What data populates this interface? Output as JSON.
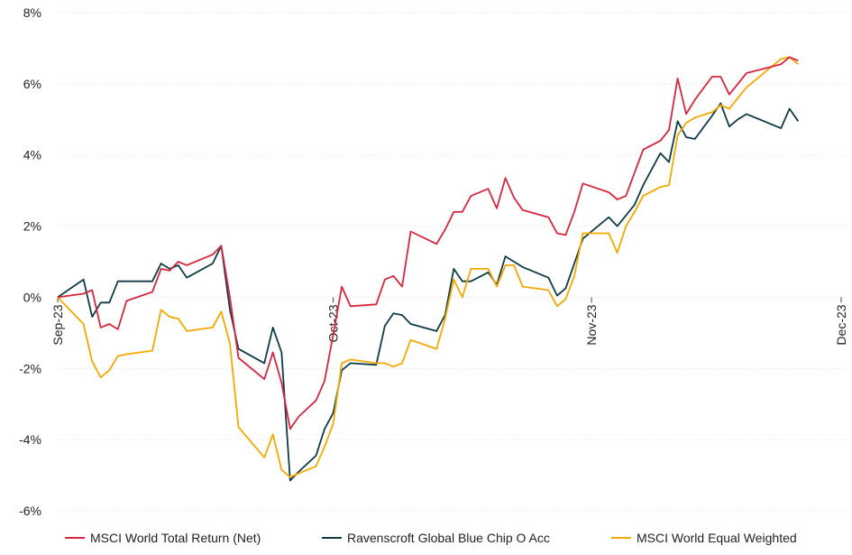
{
  "chart_data": {
    "type": "line",
    "title": "",
    "xlabel": "",
    "ylabel": "",
    "y_unit": "%",
    "ylim": [
      -6,
      8
    ],
    "y_ticks": [
      -6,
      -4,
      -2,
      0,
      2,
      4,
      6,
      8
    ],
    "y_tick_labels": [
      "-6%",
      "-4%",
      "-2%",
      "0%",
      "2%",
      "4%",
      "6%",
      "8%"
    ],
    "x_range": [
      "2023-09-29",
      "2023-12-29"
    ],
    "x_ticks": [
      {
        "date": "2023-09-29",
        "label": "Sep-23"
      },
      {
        "date": "2023-10-31",
        "label": "Oct-23"
      },
      {
        "date": "2023-11-30",
        "label": "Nov-23"
      },
      {
        "date": "2023-12-29",
        "label": "Dec-23"
      }
    ],
    "grid": "horizontal",
    "legend_position": "bottom",
    "series": [
      {
        "name": "MSCI World Total Return (Net)",
        "color": "#d7263d",
        "points": [
          [
            "2023-09-29",
            0.0
          ],
          [
            "2023-10-02",
            0.1
          ],
          [
            "2023-10-03",
            0.2
          ],
          [
            "2023-10-04",
            -0.85
          ],
          [
            "2023-10-05",
            -0.75
          ],
          [
            "2023-10-06",
            -0.9
          ],
          [
            "2023-10-07",
            -0.1
          ],
          [
            "2023-10-10",
            0.15
          ],
          [
            "2023-10-11",
            0.8
          ],
          [
            "2023-10-12",
            0.75
          ],
          [
            "2023-10-13",
            1.0
          ],
          [
            "2023-10-14",
            0.9
          ],
          [
            "2023-10-17",
            1.2
          ],
          [
            "2023-10-18",
            1.45
          ],
          [
            "2023-10-19",
            0.0
          ],
          [
            "2023-10-20",
            -1.7
          ],
          [
            "2023-10-23",
            -2.3
          ],
          [
            "2023-10-24",
            -1.55
          ],
          [
            "2023-10-25",
            -2.4
          ],
          [
            "2023-10-26",
            -3.7
          ],
          [
            "2023-10-27",
            -3.35
          ],
          [
            "2023-10-29",
            -2.9
          ],
          [
            "2023-10-30",
            -2.35
          ],
          [
            "2023-10-31",
            -1.05
          ],
          [
            "2023-11-01",
            0.3
          ],
          [
            "2023-11-02",
            -0.25
          ],
          [
            "2023-11-05",
            -0.2
          ],
          [
            "2023-11-06",
            0.5
          ],
          [
            "2023-11-07",
            0.6
          ],
          [
            "2023-11-08",
            0.3
          ],
          [
            "2023-11-09",
            1.85
          ],
          [
            "2023-11-12",
            1.5
          ],
          [
            "2023-11-13",
            1.9
          ],
          [
            "2023-11-14",
            2.4
          ],
          [
            "2023-11-15",
            2.4
          ],
          [
            "2023-11-16",
            2.85
          ],
          [
            "2023-11-18",
            3.05
          ],
          [
            "2023-11-19",
            2.5
          ],
          [
            "2023-11-20",
            3.35
          ],
          [
            "2023-11-21",
            2.8
          ],
          [
            "2023-11-22",
            2.45
          ],
          [
            "2023-11-25",
            2.25
          ],
          [
            "2023-11-26",
            1.8
          ],
          [
            "2023-11-27",
            1.75
          ],
          [
            "2023-11-28",
            2.4
          ],
          [
            "2023-11-29",
            3.2
          ],
          [
            "2023-12-02",
            2.95
          ],
          [
            "2023-12-03",
            2.75
          ],
          [
            "2023-12-04",
            2.85
          ],
          [
            "2023-12-05",
            3.5
          ],
          [
            "2023-12-06",
            4.15
          ],
          [
            "2023-12-08",
            4.4
          ],
          [
            "2023-12-09",
            4.7
          ],
          [
            "2023-12-10",
            6.15
          ],
          [
            "2023-12-11",
            5.15
          ],
          [
            "2023-12-12",
            5.55
          ],
          [
            "2023-12-14",
            6.2
          ],
          [
            "2023-12-15",
            6.2
          ],
          [
            "2023-12-16",
            5.7
          ],
          [
            "2023-12-17",
            6.0
          ],
          [
            "2023-12-18",
            6.3
          ],
          [
            "2023-12-22",
            6.55
          ],
          [
            "2023-12-23",
            6.75
          ],
          [
            "2023-12-24",
            6.65
          ]
        ]
      },
      {
        "name": "Ravenscroft Global Blue Chip O Acc",
        "color": "#0e3b47",
        "points": [
          [
            "2023-09-29",
            0.0
          ],
          [
            "2023-10-02",
            0.5
          ],
          [
            "2023-10-03",
            -0.55
          ],
          [
            "2023-10-04",
            -0.15
          ],
          [
            "2023-10-05",
            -0.15
          ],
          [
            "2023-10-06",
            0.45
          ],
          [
            "2023-10-07",
            0.45
          ],
          [
            "2023-10-10",
            0.45
          ],
          [
            "2023-10-11",
            0.95
          ],
          [
            "2023-10-12",
            0.8
          ],
          [
            "2023-10-13",
            0.9
          ],
          [
            "2023-10-14",
            0.55
          ],
          [
            "2023-10-17",
            0.95
          ],
          [
            "2023-10-18",
            1.45
          ],
          [
            "2023-10-19",
            -0.35
          ],
          [
            "2023-10-20",
            -1.45
          ],
          [
            "2023-10-23",
            -1.85
          ],
          [
            "2023-10-24",
            -0.85
          ],
          [
            "2023-10-25",
            -1.55
          ],
          [
            "2023-10-26",
            -5.15
          ],
          [
            "2023-10-27",
            -4.9
          ],
          [
            "2023-10-29",
            -4.45
          ],
          [
            "2023-10-30",
            -3.7
          ],
          [
            "2023-10-31",
            -3.25
          ],
          [
            "2023-11-01",
            -2.05
          ],
          [
            "2023-11-02",
            -1.85
          ],
          [
            "2023-11-05",
            -1.9
          ],
          [
            "2023-11-06",
            -0.8
          ],
          [
            "2023-11-07",
            -0.45
          ],
          [
            "2023-11-08",
            -0.5
          ],
          [
            "2023-11-09",
            -0.75
          ],
          [
            "2023-11-12",
            -0.95
          ],
          [
            "2023-11-13",
            -0.5
          ],
          [
            "2023-11-14",
            0.8
          ],
          [
            "2023-11-15",
            0.45
          ],
          [
            "2023-11-16",
            0.45
          ],
          [
            "2023-11-18",
            0.7
          ],
          [
            "2023-11-19",
            0.35
          ],
          [
            "2023-11-20",
            1.15
          ],
          [
            "2023-11-21",
            1.0
          ],
          [
            "2023-11-22",
            0.85
          ],
          [
            "2023-11-25",
            0.55
          ],
          [
            "2023-11-26",
            0.05
          ],
          [
            "2023-11-27",
            0.25
          ],
          [
            "2023-11-28",
            0.95
          ],
          [
            "2023-11-29",
            1.65
          ],
          [
            "2023-12-02",
            2.25
          ],
          [
            "2023-12-03",
            2.0
          ],
          [
            "2023-12-04",
            2.3
          ],
          [
            "2023-12-05",
            2.6
          ],
          [
            "2023-12-06",
            3.15
          ],
          [
            "2023-12-08",
            4.05
          ],
          [
            "2023-12-09",
            3.8
          ],
          [
            "2023-12-10",
            4.95
          ],
          [
            "2023-12-11",
            4.5
          ],
          [
            "2023-12-12",
            4.45
          ],
          [
            "2023-12-14",
            5.1
          ],
          [
            "2023-12-15",
            5.45
          ],
          [
            "2023-12-16",
            4.8
          ],
          [
            "2023-12-17",
            5.0
          ],
          [
            "2023-12-18",
            5.15
          ],
          [
            "2023-12-22",
            4.75
          ],
          [
            "2023-12-23",
            5.3
          ],
          [
            "2023-12-24",
            4.95
          ]
        ]
      },
      {
        "name": "MSCI World Equal Weighted",
        "color": "#f5a800",
        "points": [
          [
            "2023-09-29",
            0.0
          ],
          [
            "2023-10-02",
            -0.75
          ],
          [
            "2023-10-03",
            -1.8
          ],
          [
            "2023-10-04",
            -2.25
          ],
          [
            "2023-10-05",
            -2.05
          ],
          [
            "2023-10-06",
            -1.65
          ],
          [
            "2023-10-07",
            -1.6
          ],
          [
            "2023-10-10",
            -1.5
          ],
          [
            "2023-10-11",
            -0.35
          ],
          [
            "2023-10-12",
            -0.55
          ],
          [
            "2023-10-13",
            -0.6
          ],
          [
            "2023-10-14",
            -0.95
          ],
          [
            "2023-10-17",
            -0.85
          ],
          [
            "2023-10-18",
            -0.4
          ],
          [
            "2023-10-19",
            -1.3
          ],
          [
            "2023-10-20",
            -3.65
          ],
          [
            "2023-10-23",
            -4.5
          ],
          [
            "2023-10-24",
            -3.85
          ],
          [
            "2023-10-25",
            -4.85
          ],
          [
            "2023-10-26",
            -5.05
          ],
          [
            "2023-10-27",
            -4.95
          ],
          [
            "2023-10-29",
            -4.75
          ],
          [
            "2023-10-30",
            -4.2
          ],
          [
            "2023-10-31",
            -3.55
          ],
          [
            "2023-11-01",
            -1.85
          ],
          [
            "2023-11-02",
            -1.75
          ],
          [
            "2023-11-05",
            -1.85
          ],
          [
            "2023-11-06",
            -1.85
          ],
          [
            "2023-11-07",
            -1.95
          ],
          [
            "2023-11-08",
            -1.85
          ],
          [
            "2023-11-09",
            -1.2
          ],
          [
            "2023-11-12",
            -1.45
          ],
          [
            "2023-11-13",
            -0.6
          ],
          [
            "2023-11-14",
            0.5
          ],
          [
            "2023-11-15",
            0.0
          ],
          [
            "2023-11-16",
            0.8
          ],
          [
            "2023-11-18",
            0.8
          ],
          [
            "2023-11-19",
            0.3
          ],
          [
            "2023-11-20",
            0.9
          ],
          [
            "2023-11-21",
            0.9
          ],
          [
            "2023-11-22",
            0.3
          ],
          [
            "2023-11-25",
            0.2
          ],
          [
            "2023-11-26",
            -0.25
          ],
          [
            "2023-11-27",
            -0.05
          ],
          [
            "2023-11-28",
            0.6
          ],
          [
            "2023-11-29",
            1.8
          ],
          [
            "2023-12-02",
            1.8
          ],
          [
            "2023-12-03",
            1.25
          ],
          [
            "2023-12-04",
            2.0
          ],
          [
            "2023-12-05",
            2.4
          ],
          [
            "2023-12-06",
            2.85
          ],
          [
            "2023-12-08",
            3.1
          ],
          [
            "2023-12-09",
            3.15
          ],
          [
            "2023-12-10",
            4.55
          ],
          [
            "2023-12-11",
            4.9
          ],
          [
            "2023-12-12",
            5.05
          ],
          [
            "2023-12-14",
            5.2
          ],
          [
            "2023-12-15",
            5.4
          ],
          [
            "2023-12-16",
            5.3
          ],
          [
            "2023-12-17",
            5.6
          ],
          [
            "2023-12-18",
            5.9
          ],
          [
            "2023-12-22",
            6.7
          ],
          [
            "2023-12-23",
            6.75
          ],
          [
            "2023-12-24",
            6.55
          ]
        ]
      }
    ]
  }
}
